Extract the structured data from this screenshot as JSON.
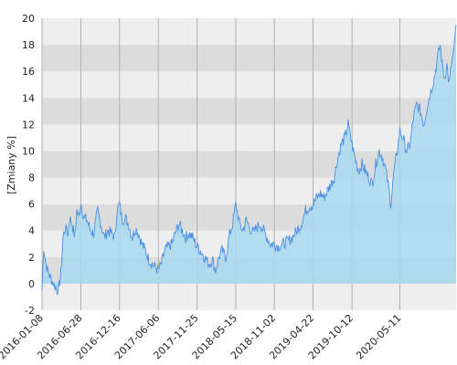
{
  "chart_data": {
    "type": "area",
    "title": "",
    "xlabel": "",
    "ylabel": "[Zmiany %]",
    "ylim": [
      -2,
      20
    ],
    "y_ticks": [
      -2,
      0,
      2,
      4,
      6,
      8,
      10,
      12,
      14,
      16,
      18,
      20
    ],
    "x_range": [
      "2016-01-08",
      "2021-01-15"
    ],
    "x_ticks": [
      "2016-01-08",
      "2016-06-28",
      "2016-12-16",
      "2017-06-06",
      "2017-11-25",
      "2018-05-15",
      "2018-11-02",
      "2019-04-22",
      "2019-10-12",
      "2020-05-11"
    ],
    "grid": true,
    "colors": {
      "line": "#4a90e2",
      "fill": "#a8d8ee",
      "band_dark": "#dcdcdc",
      "band_light": "#eeeeee"
    },
    "series": [
      {
        "x": [
          "2016-01-08",
          "2016-01-15",
          "2016-01-25",
          "2016-02-05",
          "2016-02-20",
          "2016-03-05",
          "2016-03-20",
          "2016-04-01",
          "2016-04-10",
          "2016-04-20",
          "2016-05-01",
          "2016-05-10",
          "2016-05-20",
          "2016-06-01",
          "2016-06-10",
          "2016-06-20",
          "2016-06-28",
          "2016-07-10",
          "2016-07-25",
          "2016-08-10",
          "2016-08-25",
          "2016-09-10",
          "2016-09-25",
          "2016-10-10",
          "2016-10-25",
          "2016-11-10",
          "2016-11-25",
          "2016-12-05",
          "2016-12-16",
          "2016-12-28",
          "2017-01-10",
          "2017-01-25",
          "2017-02-10",
          "2017-02-25",
          "2017-03-10",
          "2017-03-25",
          "2017-04-10",
          "2017-04-25",
          "2017-05-10",
          "2017-05-25",
          "2017-06-06",
          "2017-06-20",
          "2017-07-05",
          "2017-07-20",
          "2017-08-05",
          "2017-08-20",
          "2017-09-05",
          "2017-09-20",
          "2017-10-05",
          "2017-10-20",
          "2017-11-05",
          "2017-11-25",
          "2017-12-10",
          "2017-12-28",
          "2018-01-15",
          "2018-02-01",
          "2018-02-15",
          "2018-03-01",
          "2018-03-15",
          "2018-04-01",
          "2018-04-15",
          "2018-05-01",
          "2018-05-15",
          "2018-06-01",
          "2018-06-15",
          "2018-07-01",
          "2018-07-15",
          "2018-08-01",
          "2018-08-15",
          "2018-09-01",
          "2018-09-15",
          "2018-10-01",
          "2018-10-15",
          "2018-11-02",
          "2018-11-20",
          "2018-12-10",
          "2019-01-01",
          "2019-01-20",
          "2019-02-10",
          "2019-03-01",
          "2019-03-20",
          "2019-04-05",
          "2019-04-22",
          "2019-05-10",
          "2019-05-25",
          "2019-06-10",
          "2019-06-25",
          "2019-07-10",
          "2019-07-25",
          "2019-08-10",
          "2019-08-25",
          "2019-09-10",
          "2019-09-25",
          "2019-10-12",
          "2019-10-25",
          "2019-11-10",
          "2019-11-25",
          "2019-12-10",
          "2019-12-25",
          "2020-01-10",
          "2020-01-25",
          "2020-02-10",
          "2020-02-25",
          "2020-03-10",
          "2020-03-20",
          "2020-04-01",
          "2020-04-15",
          "2020-04-25",
          "2020-05-11",
          "2020-05-25",
          "2020-06-10",
          "2020-06-25",
          "2020-07-10",
          "2020-07-25",
          "2020-08-10",
          "2020-08-25",
          "2020-09-10",
          "2020-09-25",
          "2020-10-10",
          "2020-10-25",
          "2020-11-05",
          "2020-11-15",
          "2020-11-25",
          "2020-12-05",
          "2020-12-15",
          "2020-12-25",
          "2021-01-05",
          "2021-01-15"
        ],
        "y": [
          -0.5,
          2.8,
          1.5,
          0.8,
          0.3,
          -0.2,
          -0.5,
          0.8,
          3.5,
          4.2,
          3.8,
          5.0,
          4.5,
          3.5,
          5.5,
          5.0,
          6.2,
          5.0,
          4.8,
          4.0,
          3.8,
          5.5,
          4.5,
          3.5,
          4.0,
          3.8,
          3.5,
          5.5,
          6.0,
          4.8,
          5.0,
          4.5,
          3.5,
          4.2,
          3.8,
          3.0,
          2.5,
          1.8,
          1.5,
          1.2,
          1.0,
          1.5,
          2.5,
          2.8,
          3.0,
          3.8,
          4.5,
          4.0,
          3.5,
          3.8,
          3.5,
          2.8,
          2.5,
          2.0,
          1.5,
          1.8,
          1.0,
          2.0,
          2.5,
          2.0,
          3.5,
          4.5,
          6.0,
          4.5,
          4.0,
          4.8,
          4.2,
          3.8,
          4.2,
          4.5,
          4.0,
          3.5,
          3.0,
          3.0,
          2.8,
          3.0,
          3.2,
          3.5,
          4.0,
          4.5,
          5.5,
          5.8,
          6.0,
          6.5,
          6.8,
          6.5,
          7.0,
          7.5,
          8.0,
          9.5,
          10.5,
          11.0,
          12.0,
          10.5,
          9.5,
          8.5,
          9.0,
          8.5,
          8.0,
          7.5,
          9.0,
          10.0,
          9.5,
          8.5,
          7.5,
          6.0,
          8.5,
          9.5,
          11.5,
          11.0,
          10.0,
          10.5,
          12.5,
          13.5,
          13.0,
          12.0,
          13.5,
          14.5,
          15.5,
          17.0,
          18.0,
          16.5,
          15.5,
          16.5,
          15.0,
          16.5,
          17.5,
          19.5
        ]
      }
    ]
  }
}
